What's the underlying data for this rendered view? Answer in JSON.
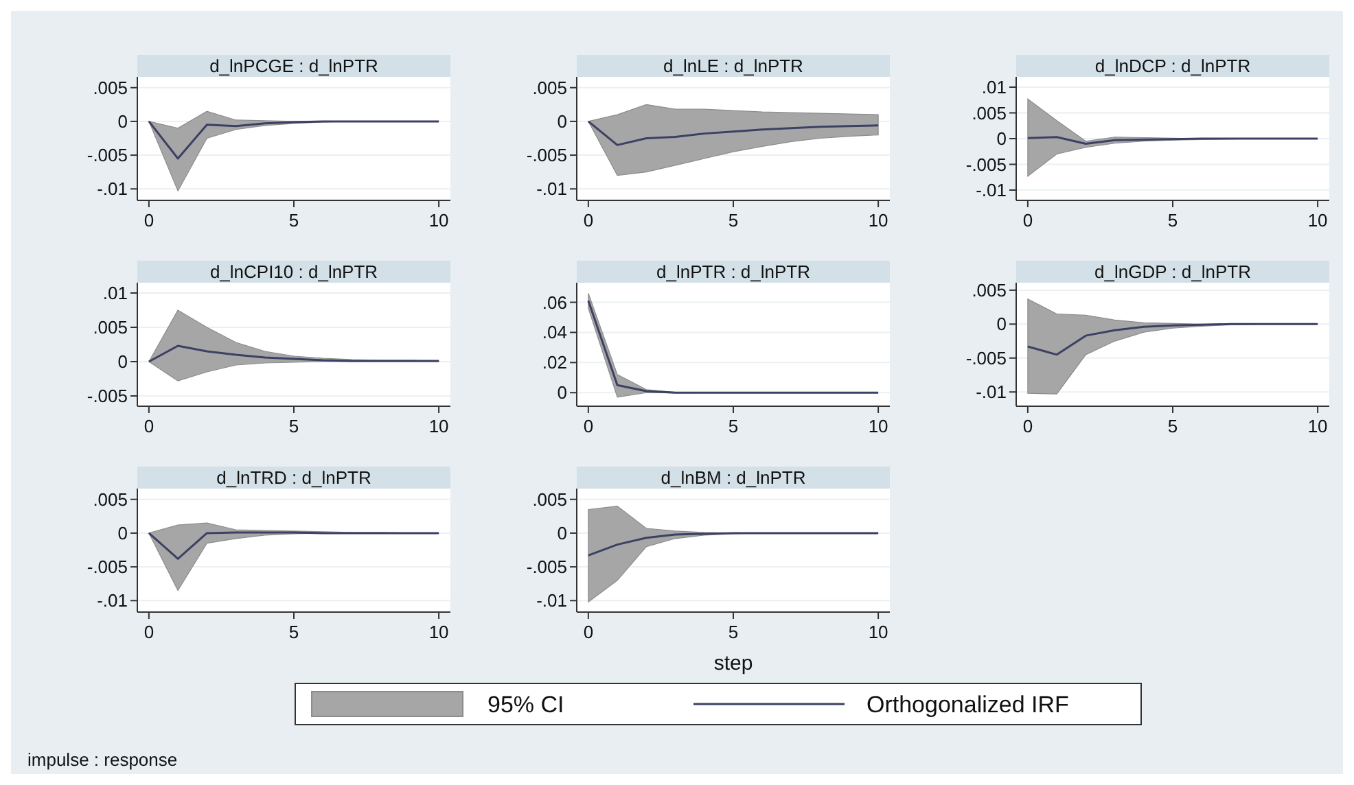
{
  "chart_data": [
    {
      "type": "line",
      "title": "d_lnPCGE : d_lnPTR",
      "x": [
        0,
        1,
        2,
        3,
        4,
        5,
        6,
        7,
        8,
        9,
        10
      ],
      "xlim": [
        -0.4,
        10.4
      ],
      "xticks": [
        0,
        5,
        10
      ],
      "ylim": [
        -0.0117,
        0.0066
      ],
      "yticks": [
        {
          "value": 0.005,
          "label": ".005"
        },
        {
          "value": 0,
          "label": "0"
        },
        {
          "value": -0.005,
          "label": "-.005"
        },
        {
          "value": -0.01,
          "label": "-.01"
        }
      ],
      "grid": "y",
      "series": [
        {
          "color": "#3c4064",
          "values": [
            0,
            -0.0055,
            -0.0005,
            -0.0007,
            -0.0003,
            -0.0001,
            0,
            0,
            0,
            0,
            0
          ],
          "lower": [
            0,
            -0.0103,
            -0.0025,
            -0.0012,
            -0.0006,
            -0.0003,
            -0.0001,
            0,
            0,
            0,
            0
          ],
          "upper": [
            0,
            -0.001,
            0.0015,
            0.0002,
            0.0001,
            0,
            0,
            0,
            0,
            0,
            0
          ]
        }
      ]
    },
    {
      "type": "line",
      "title": "d_lnLE : d_lnPTR",
      "x": [
        0,
        1,
        2,
        3,
        4,
        5,
        6,
        7,
        8,
        9,
        10
      ],
      "xlim": [
        -0.4,
        10.4
      ],
      "xticks": [
        0,
        5,
        10
      ],
      "ylim": [
        -0.0117,
        0.0066
      ],
      "yticks": [
        {
          "value": 0.005,
          "label": ".005"
        },
        {
          "value": 0,
          "label": "0"
        },
        {
          "value": -0.005,
          "label": "-.005"
        },
        {
          "value": -0.01,
          "label": "-.01"
        }
      ],
      "grid": "y",
      "series": [
        {
          "color": "#3c4064",
          "values": [
            0,
            -0.0035,
            -0.0025,
            -0.0023,
            -0.0018,
            -0.0015,
            -0.0012,
            -0.001,
            -0.0008,
            -0.0007,
            -0.0006
          ],
          "lower": [
            0,
            -0.008,
            -0.0075,
            -0.0065,
            -0.0055,
            -0.0045,
            -0.0037,
            -0.003,
            -0.0025,
            -0.0022,
            -0.002
          ],
          "upper": [
            0,
            0.001,
            0.0025,
            0.0018,
            0.0018,
            0.0016,
            0.0014,
            0.0013,
            0.0012,
            0.0011,
            0.001
          ]
        }
      ]
    },
    {
      "type": "line",
      "title": "d_lnDCP : d_lnPTR",
      "x": [
        0,
        1,
        2,
        3,
        4,
        5,
        6,
        7,
        8,
        9,
        10
      ],
      "xlim": [
        -0.4,
        10.4
      ],
      "xticks": [
        0,
        5,
        10
      ],
      "ylim": [
        -0.012,
        0.012
      ],
      "yticks": [
        {
          "value": 0.01,
          "label": ".01"
        },
        {
          "value": 0.005,
          "label": ".005"
        },
        {
          "value": 0,
          "label": "0"
        },
        {
          "value": -0.005,
          "label": "-.005"
        },
        {
          "value": -0.01,
          "label": "-.01"
        }
      ],
      "grid": "y",
      "series": [
        {
          "color": "#3c4064",
          "values": [
            0.0001,
            0.0003,
            -0.001,
            -0.0003,
            -0.0002,
            -0.0001,
            0,
            0,
            0,
            0,
            0
          ],
          "lower": [
            -0.0073,
            -0.003,
            -0.0017,
            -0.0009,
            -0.0005,
            -0.0003,
            -0.0002,
            -0.0001,
            0,
            0,
            0
          ],
          "upper": [
            0.0077,
            0.0035,
            -0.0005,
            0.0003,
            0.0002,
            0.0001,
            0,
            0,
            0,
            0,
            0
          ]
        }
      ]
    },
    {
      "type": "line",
      "title": "d_lnCPI10 : d_lnPTR",
      "x": [
        0,
        1,
        2,
        3,
        4,
        5,
        6,
        7,
        8,
        9,
        10
      ],
      "xlim": [
        -0.4,
        10.4
      ],
      "xticks": [
        0,
        5,
        10
      ],
      "ylim": [
        -0.0065,
        0.0115
      ],
      "yticks": [
        {
          "value": 0.01,
          "label": ".01"
        },
        {
          "value": 0.005,
          "label": ".005"
        },
        {
          "value": 0,
          "label": "0"
        },
        {
          "value": -0.005,
          "label": "-.005"
        }
      ],
      "grid": "y",
      "series": [
        {
          "color": "#3c4064",
          "values": [
            0,
            0.0023,
            0.0015,
            0.001,
            0.0006,
            0.0004,
            0.0002,
            0.0001,
            0.0001,
            0.0001,
            0.0001
          ],
          "lower": [
            0,
            -0.0028,
            -0.0015,
            -0.0005,
            -0.0002,
            -0.0001,
            0,
            0,
            0,
            0,
            0
          ],
          "upper": [
            0,
            0.0075,
            0.005,
            0.0028,
            0.0015,
            0.0008,
            0.0005,
            0.0003,
            0.0002,
            0.0002,
            0.0001
          ]
        }
      ]
    },
    {
      "type": "line",
      "title": "d_lnPTR : d_lnPTR",
      "x": [
        0,
        1,
        2,
        3,
        4,
        5,
        6,
        7,
        8,
        9,
        10
      ],
      "xlim": [
        -0.4,
        10.4
      ],
      "xticks": [
        0,
        5,
        10
      ],
      "ylim": [
        -0.009,
        0.073
      ],
      "yticks": [
        {
          "value": 0.06,
          "label": ".06"
        },
        {
          "value": 0.04,
          "label": ".04"
        },
        {
          "value": 0.02,
          "label": ".02"
        },
        {
          "value": 0,
          "label": "0"
        }
      ],
      "grid": "y",
      "series": [
        {
          "color": "#3c4064",
          "values": [
            0.061,
            0.005,
            0.001,
            0,
            0,
            0,
            0,
            0,
            0,
            0,
            0
          ],
          "lower": [
            0.056,
            -0.003,
            0,
            -0.0002,
            0,
            0,
            0,
            0,
            0,
            0,
            0
          ],
          "upper": [
            0.066,
            0.012,
            0.002,
            0.0003,
            0,
            0,
            0,
            0,
            0,
            0,
            0
          ]
        }
      ]
    },
    {
      "type": "line",
      "title": "d_lnGDP : d_lnPTR",
      "x": [
        0,
        1,
        2,
        3,
        4,
        5,
        6,
        7,
        8,
        9,
        10
      ],
      "xlim": [
        -0.4,
        10.4
      ],
      "xticks": [
        0,
        5,
        10
      ],
      "ylim": [
        -0.0121,
        0.0061
      ],
      "yticks": [
        {
          "value": 0.005,
          "label": ".005"
        },
        {
          "value": 0,
          "label": "0"
        },
        {
          "value": -0.005,
          "label": "-.005"
        },
        {
          "value": -0.01,
          "label": "-.01"
        }
      ],
      "grid": "y",
      "series": [
        {
          "color": "#3c4064",
          "values": [
            -0.0033,
            -0.0045,
            -0.0017,
            -0.0009,
            -0.0004,
            -0.0002,
            -0.0001,
            0,
            0,
            0,
            0
          ],
          "lower": [
            -0.0102,
            -0.0103,
            -0.0045,
            -0.0025,
            -0.0012,
            -0.0006,
            -0.0003,
            -0.0001,
            0,
            0,
            0
          ],
          "upper": [
            0.0037,
            0.0015,
            0.0013,
            0.0006,
            0.0002,
            0.0001,
            0,
            0,
            0,
            0,
            0
          ]
        }
      ]
    },
    {
      "type": "line",
      "title": "d_lnTRD : d_lnPTR",
      "x": [
        0,
        1,
        2,
        3,
        4,
        5,
        6,
        7,
        8,
        9,
        10
      ],
      "xlim": [
        -0.4,
        10.4
      ],
      "xticks": [
        0,
        5,
        10
      ],
      "ylim": [
        -0.0117,
        0.0066
      ],
      "yticks": [
        {
          "value": 0.005,
          "label": ".005"
        },
        {
          "value": 0,
          "label": "0"
        },
        {
          "value": -0.005,
          "label": "-.005"
        },
        {
          "value": -0.01,
          "label": "-.01"
        }
      ],
      "grid": "y",
      "series": [
        {
          "color": "#3c4064",
          "values": [
            0,
            -0.0038,
            0,
            0.0001,
            0.0001,
            0.0001,
            0,
            0,
            0,
            0,
            0
          ],
          "lower": [
            0,
            -0.0085,
            -0.0015,
            -0.0008,
            -0.0003,
            -0.0001,
            0,
            0,
            0,
            0,
            0
          ],
          "upper": [
            0,
            0.0012,
            0.0015,
            0.0005,
            0.0004,
            0.0003,
            0.0002,
            0.0001,
            0.0001,
            0,
            0
          ]
        }
      ]
    },
    {
      "type": "line",
      "title": "d_lnBM : d_lnPTR",
      "xlabel": "step",
      "x": [
        0,
        1,
        2,
        3,
        4,
        5,
        6,
        7,
        8,
        9,
        10
      ],
      "xlim": [
        -0.4,
        10.4
      ],
      "xticks": [
        0,
        5,
        10
      ],
      "ylim": [
        -0.0117,
        0.0066
      ],
      "yticks": [
        {
          "value": 0.005,
          "label": ".005"
        },
        {
          "value": 0,
          "label": "0"
        },
        {
          "value": -0.005,
          "label": "-.005"
        },
        {
          "value": -0.01,
          "label": "-.01"
        }
      ],
      "grid": "y",
      "legend": "bottom",
      "annotations": [
        "95% CI",
        "impulse : response"
      ],
      "series": [
        {
          "name": "Orthogonalized IRF",
          "color": "#3c4064",
          "values": [
            -0.0033,
            -0.0017,
            -0.0007,
            -0.0002,
            -0.0001,
            0,
            0,
            0,
            0,
            0,
            0
          ],
          "lower": [
            -0.0102,
            -0.007,
            -0.002,
            -0.0008,
            -0.0003,
            -0.0001,
            0,
            0,
            0,
            0,
            0
          ],
          "upper": [
            0.0035,
            0.004,
            0.0007,
            0.0003,
            0.0001,
            0,
            0,
            0,
            0,
            0,
            0
          ]
        }
      ]
    }
  ]
}
